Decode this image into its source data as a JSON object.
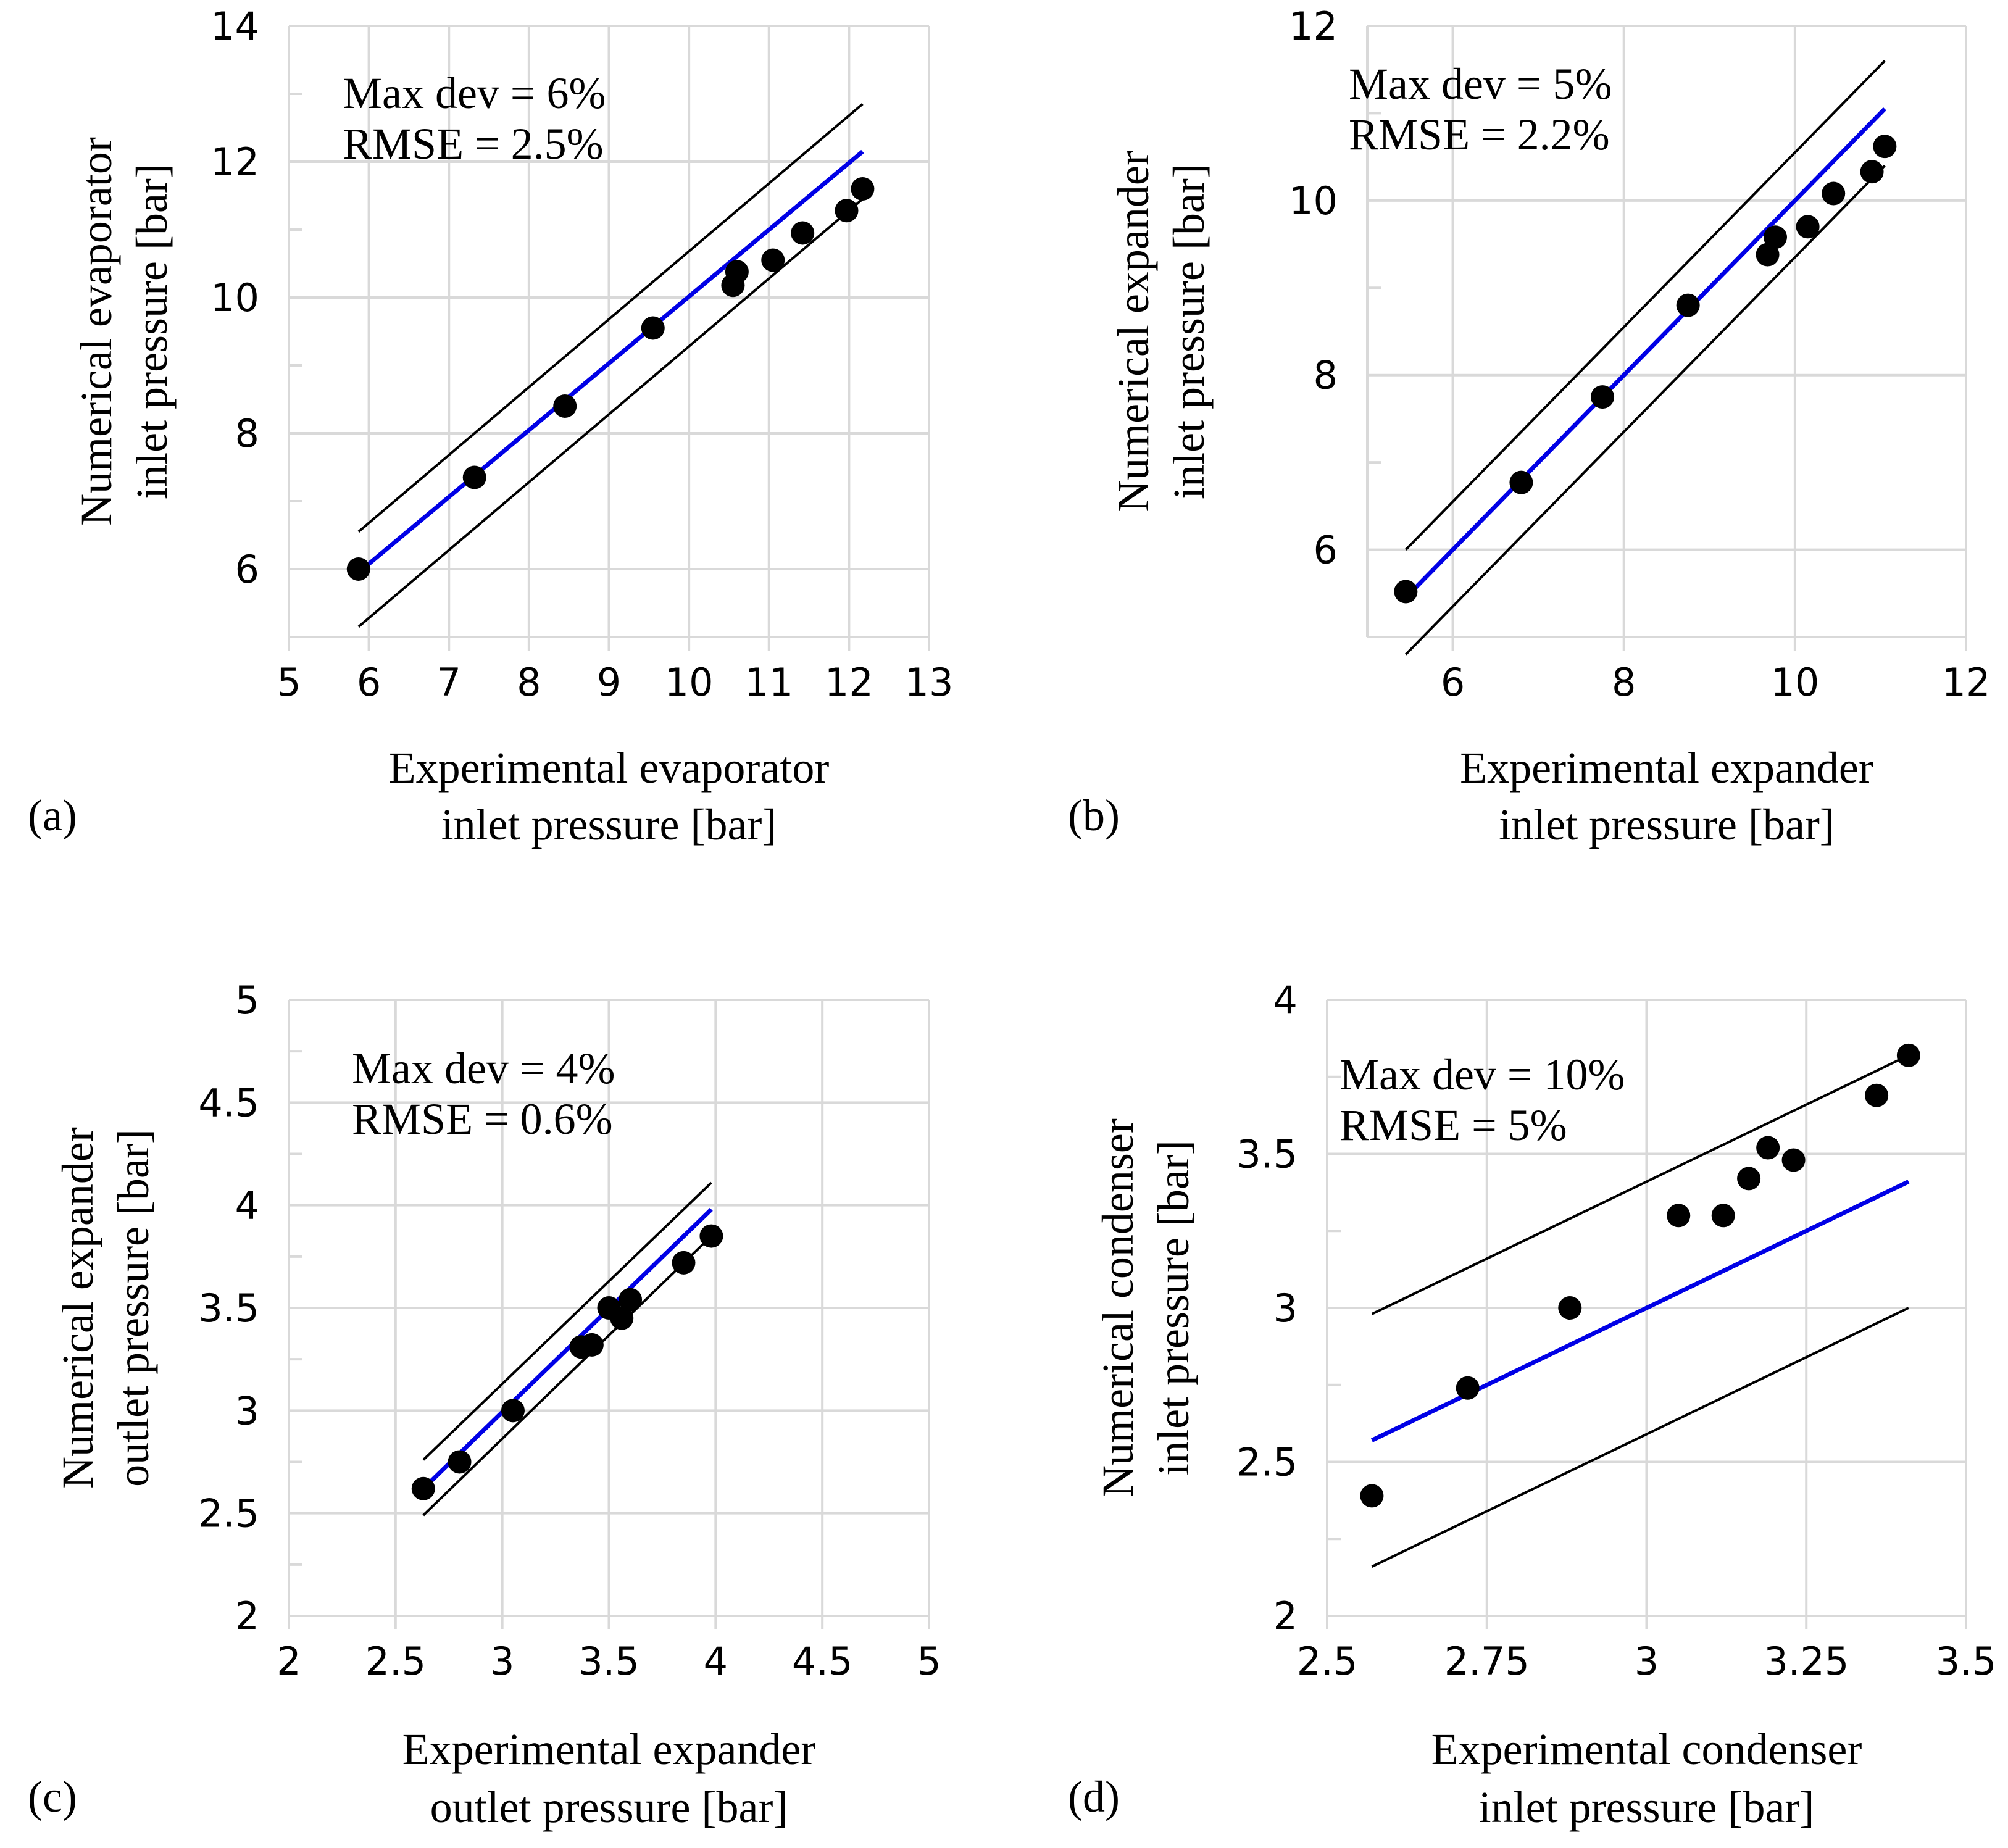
{
  "chart_data": [
    {
      "type": "scatter",
      "panel_label": "(a)",
      "xlabel": [
        "Experimental evaporator",
        "inlet pressure [bar]"
      ],
      "ylabel": [
        "Numerical evaporator",
        "inlet pressure [bar]"
      ],
      "xlim": [
        5,
        13
      ],
      "ylim": [
        5,
        14
      ],
      "xticks": [
        5,
        6,
        7,
        8,
        9,
        10,
        11,
        12,
        13
      ],
      "yticks": [
        6,
        8,
        10,
        12,
        14
      ],
      "annotation": [
        "Max dev = 6%",
        "RMSE = 2.5%"
      ],
      "grid": true,
      "points": [
        {
          "x": 5.87,
          "y": 6.0
        },
        {
          "x": 7.32,
          "y": 7.35
        },
        {
          "x": 8.45,
          "y": 8.4
        },
        {
          "x": 9.55,
          "y": 9.55
        },
        {
          "x": 10.55,
          "y": 10.18
        },
        {
          "x": 10.6,
          "y": 10.38
        },
        {
          "x": 11.05,
          "y": 10.55
        },
        {
          "x": 11.42,
          "y": 10.95
        },
        {
          "x": 11.97,
          "y": 11.28
        },
        {
          "x": 12.17,
          "y": 11.6
        }
      ],
      "fit_line": [
        [
          5.87,
          5.95
        ],
        [
          12.17,
          12.15
        ]
      ],
      "upper_line": [
        [
          5.87,
          6.55
        ],
        [
          12.17,
          12.85
        ]
      ],
      "lower_line": [
        [
          5.87,
          5.15
        ],
        [
          12.17,
          11.45
        ]
      ]
    },
    {
      "type": "scatter",
      "panel_label": "(b)",
      "xlabel": [
        "Experimental expander",
        "inlet pressure [bar]"
      ],
      "ylabel": [
        "Numerical expander",
        "inlet pressure [bar]"
      ],
      "xlim": [
        5,
        12
      ],
      "ylim": [
        5,
        12
      ],
      "xticks": [
        6,
        8,
        10,
        12
      ],
      "yticks": [
        6,
        8,
        10,
        12
      ],
      "annotation": [
        "Max dev = 5%",
        "RMSE = 2.2%"
      ],
      "grid": true,
      "points": [
        {
          "x": 5.45,
          "y": 5.52
        },
        {
          "x": 6.8,
          "y": 6.77
        },
        {
          "x": 7.75,
          "y": 7.75
        },
        {
          "x": 8.75,
          "y": 8.8
        },
        {
          "x": 9.68,
          "y": 9.38
        },
        {
          "x": 9.77,
          "y": 9.58
        },
        {
          "x": 10.15,
          "y": 9.7
        },
        {
          "x": 10.45,
          "y": 10.08
        },
        {
          "x": 10.9,
          "y": 10.33
        },
        {
          "x": 11.05,
          "y": 10.62
        }
      ],
      "fit_line": [
        [
          5.45,
          5.45
        ],
        [
          11.05,
          11.05
        ]
      ],
      "upper_line": [
        [
          5.45,
          6.0
        ],
        [
          11.05,
          11.6
        ]
      ],
      "lower_line": [
        [
          5.45,
          4.8
        ],
        [
          11.05,
          10.4
        ]
      ]
    },
    {
      "type": "scatter",
      "panel_label": "(c)",
      "xlabel": [
        "Experimental expander",
        "outlet pressure [bar]"
      ],
      "ylabel": [
        "Numerical expander",
        "outlet pressure [bar]"
      ],
      "xlim": [
        2,
        5
      ],
      "ylim": [
        2,
        5
      ],
      "xticks": [
        "2",
        "2.5",
        "3",
        "3.5",
        "4",
        "4.5",
        "5"
      ],
      "yticks": [
        "2",
        "2.5",
        "3",
        "3.5",
        "4",
        "4.5",
        "5"
      ],
      "annotation": [
        "Max dev = 4%",
        "RMSE = 0.6%"
      ],
      "grid": true,
      "points": [
        {
          "x": 2.63,
          "y": 2.62
        },
        {
          "x": 2.8,
          "y": 2.75
        },
        {
          "x": 3.05,
          "y": 3.0
        },
        {
          "x": 3.37,
          "y": 3.31
        },
        {
          "x": 3.42,
          "y": 3.32
        },
        {
          "x": 3.5,
          "y": 3.5
        },
        {
          "x": 3.56,
          "y": 3.45
        },
        {
          "x": 3.6,
          "y": 3.54
        },
        {
          "x": 3.85,
          "y": 3.72
        },
        {
          "x": 3.98,
          "y": 3.85
        }
      ],
      "fit_line": [
        [
          2.63,
          2.62
        ],
        [
          3.98,
          3.98
        ]
      ],
      "upper_line": [
        [
          2.63,
          2.76
        ],
        [
          3.98,
          4.11
        ]
      ],
      "lower_line": [
        [
          2.63,
          2.49
        ],
        [
          3.98,
          3.85
        ]
      ]
    },
    {
      "type": "scatter",
      "panel_label": "(d)",
      "xlabel": [
        "Experimental condenser",
        "inlet pressure [bar]"
      ],
      "ylabel": [
        "Numerical condenser",
        "inlet pressure [bar]"
      ],
      "xlim": [
        2.5,
        3.5
      ],
      "ylim": [
        2,
        4
      ],
      "xticks": [
        "2.5",
        "2.75",
        "3",
        "3.25",
        "3.5"
      ],
      "yticks": [
        "2",
        "2.5",
        "3",
        "3.5",
        "4"
      ],
      "annotation": [
        "Max dev = 10%",
        "RMSE = 5%"
      ],
      "grid": true,
      "points": [
        {
          "x": 2.57,
          "y": 2.39
        },
        {
          "x": 2.72,
          "y": 2.74
        },
        {
          "x": 2.88,
          "y": 3.0
        },
        {
          "x": 3.05,
          "y": 3.3
        },
        {
          "x": 3.12,
          "y": 3.3
        },
        {
          "x": 3.16,
          "y": 3.42
        },
        {
          "x": 3.19,
          "y": 3.52
        },
        {
          "x": 3.23,
          "y": 3.48
        },
        {
          "x": 3.36,
          "y": 3.69
        },
        {
          "x": 3.41,
          "y": 3.82
        }
      ],
      "fit_line": [
        [
          2.57,
          2.57
        ],
        [
          3.41,
          3.41
        ]
      ],
      "upper_line": [
        [
          2.57,
          2.98
        ],
        [
          3.41,
          3.82
        ]
      ],
      "lower_line": [
        [
          2.57,
          2.16
        ],
        [
          3.41,
          3.0
        ]
      ]
    }
  ]
}
